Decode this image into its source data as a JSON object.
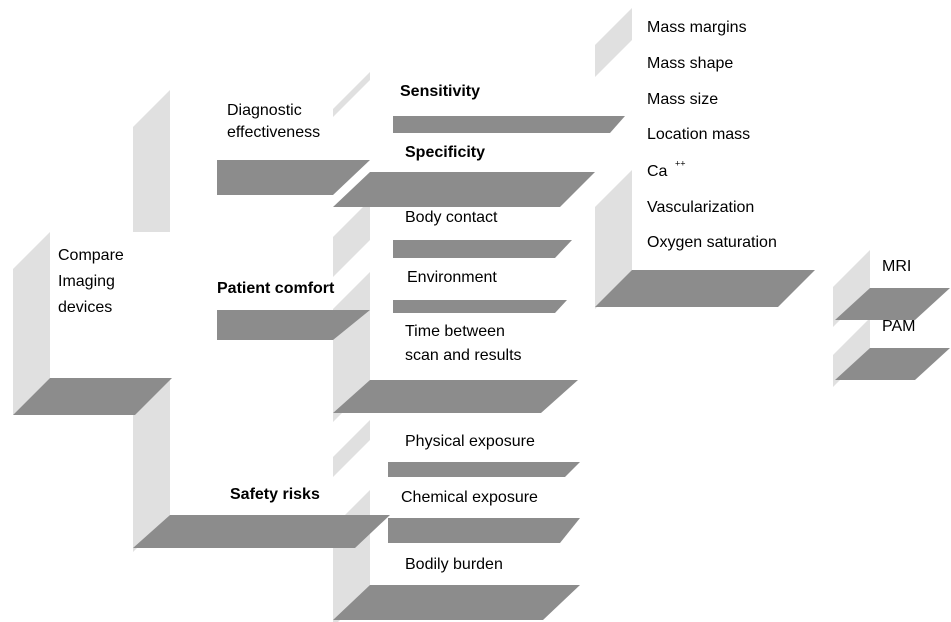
{
  "goal": {
    "lines": [
      "Compare",
      "Imaging",
      "devices"
    ]
  },
  "criteria": [
    {
      "lines": [
        "Diagnostic",
        "effectiveness"
      ],
      "subcriteria": [
        {
          "lines": [
            "Sensitivity"
          ]
        },
        {
          "lines": [
            "Specificity"
          ]
        }
      ]
    },
    {
      "lines": [
        "Patient comfort"
      ],
      "subcriteria": [
        {
          "lines": [
            "Body contact"
          ]
        },
        {
          "lines": [
            "Environment"
          ]
        },
        {
          "lines": [
            "Time between",
            "scan and results"
          ]
        }
      ]
    },
    {
      "lines": [
        "Safety risks"
      ],
      "subcriteria": [
        {
          "lines": [
            "Physical exposure"
          ]
        },
        {
          "lines": [
            "Chemical exposure"
          ]
        },
        {
          "lines": [
            "Bodily burden"
          ]
        }
      ]
    }
  ],
  "attributes": [
    {
      "label": "Mass margins"
    },
    {
      "label": "Mass shape"
    },
    {
      "label": "Mass size"
    },
    {
      "label": "Location mass"
    },
    {
      "label": "Ca",
      "superscript": "++"
    },
    {
      "label": "Vascularization"
    },
    {
      "label": "Oxygen saturation"
    }
  ],
  "alternatives": [
    "MRI",
    "PAM"
  ]
}
